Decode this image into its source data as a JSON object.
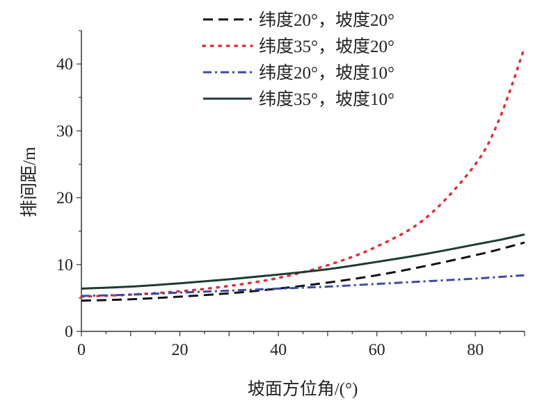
{
  "chart_data": {
    "type": "line",
    "title": "",
    "xlabel": "坡面方位角/(°)",
    "ylabel": "排间距/m",
    "xlim": [
      0,
      90
    ],
    "ylim": [
      0,
      45
    ],
    "xticks": [
      0,
      20,
      40,
      60,
      80
    ],
    "yticks": [
      0,
      10,
      20,
      30,
      40
    ],
    "grid": false,
    "legend_position": "top-right",
    "x": [
      0,
      10,
      20,
      30,
      40,
      50,
      60,
      70,
      80,
      85,
      90
    ],
    "series": [
      {
        "name": "纬度20°，坡度20°",
        "color": "#111111",
        "style": "dashed",
        "values": [
          4.6,
          4.8,
          5.2,
          5.7,
          6.4,
          7.3,
          8.4,
          9.8,
          11.4,
          12.3,
          13.3
        ]
      },
      {
        "name": "纬度35°，坡度20°",
        "color": "#e0303a",
        "style": "dotted",
        "values": [
          5.2,
          5.5,
          6.0,
          6.8,
          8.0,
          9.9,
          12.7,
          17.0,
          25.0,
          32.0,
          42.5
        ]
      },
      {
        "name": "纬度20°，坡度10°",
        "color": "#3a4aa8",
        "style": "dashdot",
        "values": [
          5.3,
          5.5,
          5.8,
          6.1,
          6.4,
          6.7,
          7.1,
          7.5,
          7.9,
          8.15,
          8.4
        ]
      },
      {
        "name": "纬度35°，坡度10°",
        "color": "#1e3a32",
        "style": "solid",
        "values": [
          6.4,
          6.7,
          7.2,
          7.8,
          8.5,
          9.3,
          10.4,
          11.6,
          13.0,
          13.7,
          14.5
        ]
      }
    ]
  }
}
